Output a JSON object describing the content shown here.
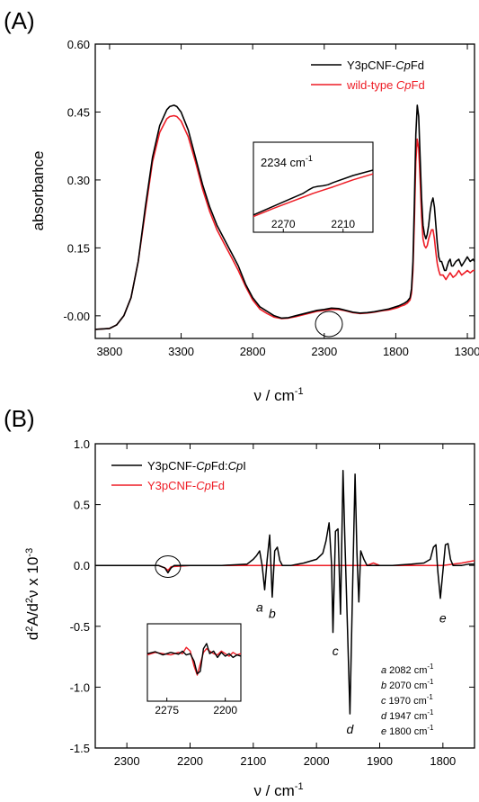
{
  "charts": [
    {
      "type": "line",
      "panel_label": "(A)",
      "xlabel_sym": "ν",
      "xlabel_unit": " / cm",
      "xlabel_exp": "-1",
      "ylabel": "absorbance",
      "xlim": [
        3900,
        1250
      ],
      "ylim": [
        -0.05,
        0.6
      ],
      "x_ticks": [
        3800,
        3300,
        2800,
        2300,
        1800,
        1300
      ],
      "y_ticks": [
        "-0.00",
        "0.15",
        "0.30",
        "0.45",
        "0.60"
      ],
      "y_tick_values": [
        0,
        0.15,
        0.3,
        0.45,
        0.6
      ],
      "legend": {
        "placement": "top-right"
      },
      "series": [
        {
          "name_parts": [
            "Y3pCNF-",
            "Cp",
            "Fd"
          ],
          "color": "#000000",
          "x": [
            3900,
            3800,
            3750,
            3700,
            3650,
            3600,
            3550,
            3500,
            3450,
            3400,
            3380,
            3350,
            3330,
            3300,
            3250,
            3200,
            3150,
            3100,
            3050,
            3000,
            2950,
            2900,
            2850,
            2800,
            2750,
            2700,
            2650,
            2600,
            2550,
            2500,
            2450,
            2400,
            2350,
            2300,
            2250,
            2200,
            2150,
            2100,
            2050,
            2000,
            1950,
            1900,
            1850,
            1800,
            1780,
            1760,
            1740,
            1720,
            1700,
            1690,
            1680,
            1670,
            1660,
            1650,
            1640,
            1630,
            1620,
            1610,
            1600,
            1590,
            1580,
            1570,
            1560,
            1550,
            1540,
            1530,
            1520,
            1510,
            1500,
            1490,
            1480,
            1470,
            1460,
            1450,
            1440,
            1430,
            1420,
            1410,
            1400,
            1380,
            1360,
            1340,
            1320,
            1300,
            1280,
            1260,
            1250
          ],
          "y": [
            -0.03,
            -0.028,
            -0.02,
            0.0,
            0.04,
            0.12,
            0.24,
            0.35,
            0.42,
            0.455,
            0.462,
            0.465,
            0.462,
            0.45,
            0.41,
            0.35,
            0.29,
            0.24,
            0.2,
            0.17,
            0.14,
            0.11,
            0.07,
            0.04,
            0.02,
            0.01,
            0.0,
            -0.005,
            -0.004,
            0.0,
            0.004,
            0.008,
            0.012,
            0.014,
            0.017,
            0.016,
            0.012,
            0.008,
            0.006,
            0.007,
            0.009,
            0.012,
            0.015,
            0.02,
            0.022,
            0.025,
            0.028,
            0.032,
            0.04,
            0.06,
            0.12,
            0.25,
            0.4,
            0.465,
            0.44,
            0.35,
            0.26,
            0.2,
            0.18,
            0.17,
            0.18,
            0.2,
            0.23,
            0.25,
            0.26,
            0.24,
            0.2,
            0.16,
            0.13,
            0.12,
            0.12,
            0.11,
            0.1,
            0.1,
            0.11,
            0.12,
            0.125,
            0.11,
            0.11,
            0.12,
            0.125,
            0.11,
            0.12,
            0.13,
            0.12,
            0.125,
            0.12
          ]
        },
        {
          "name_parts": [
            "wild-type ",
            "Cp",
            "Fd"
          ],
          "color": "#ee1c25",
          "x": [
            3900,
            3800,
            3750,
            3700,
            3650,
            3600,
            3550,
            3500,
            3450,
            3400,
            3380,
            3350,
            3330,
            3300,
            3250,
            3200,
            3150,
            3100,
            3050,
            3000,
            2950,
            2900,
            2850,
            2800,
            2750,
            2700,
            2650,
            2600,
            2550,
            2500,
            2450,
            2400,
            2350,
            2300,
            2250,
            2200,
            2150,
            2100,
            2050,
            2000,
            1950,
            1900,
            1850,
            1800,
            1780,
            1760,
            1740,
            1720,
            1700,
            1690,
            1680,
            1670,
            1660,
            1650,
            1640,
            1630,
            1620,
            1610,
            1600,
            1590,
            1580,
            1570,
            1560,
            1550,
            1540,
            1530,
            1520,
            1510,
            1500,
            1490,
            1480,
            1470,
            1460,
            1450,
            1440,
            1430,
            1420,
            1410,
            1400,
            1380,
            1360,
            1340,
            1320,
            1300,
            1280,
            1260,
            1250
          ],
          "y": [
            -0.03,
            -0.028,
            -0.02,
            0.0,
            0.04,
            0.12,
            0.23,
            0.34,
            0.405,
            0.435,
            0.44,
            0.442,
            0.44,
            0.43,
            0.395,
            0.34,
            0.28,
            0.23,
            0.19,
            0.16,
            0.13,
            0.1,
            0.065,
            0.035,
            0.015,
            0.005,
            -0.003,
            -0.006,
            -0.005,
            -0.002,
            0.002,
            0.006,
            0.01,
            0.012,
            0.014,
            0.014,
            0.011,
            0.007,
            0.005,
            0.006,
            0.008,
            0.011,
            0.013,
            0.017,
            0.019,
            0.022,
            0.024,
            0.028,
            0.035,
            0.05,
            0.1,
            0.21,
            0.34,
            0.39,
            0.37,
            0.3,
            0.22,
            0.17,
            0.155,
            0.15,
            0.155,
            0.17,
            0.18,
            0.19,
            0.19,
            0.17,
            0.14,
            0.115,
            0.1,
            0.09,
            0.09,
            0.09,
            0.085,
            0.08,
            0.085,
            0.09,
            0.095,
            0.09,
            0.085,
            0.09,
            0.1,
            0.09,
            0.095,
            0.1,
            0.095,
            0.1,
            0.1
          ]
        }
      ],
      "inset": {
        "label_main": "2234 cm",
        "label_exp": "-1",
        "xlim": [
          2300,
          2180
        ],
        "ylim": [
          0,
          1
        ],
        "x_ticks": [
          2270,
          2210
        ],
        "series": [
          {
            "color": "#000000",
            "x": [
              2300,
              2280,
              2260,
              2250,
              2245,
              2240,
              2235,
              2230,
              2225,
              2220,
              2200,
              2180
            ],
            "y": [
              0.12,
              0.28,
              0.44,
              0.52,
              0.58,
              0.63,
              0.65,
              0.66,
              0.68,
              0.72,
              0.85,
              0.95
            ]
          },
          {
            "color": "#ee1c25",
            "x": [
              2300,
              2280,
              2260,
              2250,
              2240,
              2230,
              2220,
              2200,
              2180
            ],
            "y": [
              0.09,
              0.24,
              0.38,
              0.45,
              0.52,
              0.58,
              0.64,
              0.77,
              0.88
            ]
          }
        ]
      }
    },
    {
      "type": "line",
      "panel_label": "(B)",
      "xlabel_sym": "ν",
      "xlabel_unit": " / cm",
      "xlabel_exp": "-1",
      "ylabel_parts": [
        "d",
        "2",
        "A/d",
        "2",
        "ν x 10",
        "-3"
      ],
      "xlim": [
        2350,
        1750
      ],
      "ylim": [
        -1.5,
        1.0
      ],
      "x_ticks": [
        2300,
        2200,
        2100,
        2000,
        1900,
        1800
      ],
      "y_ticks": [
        "1.0",
        "0.5",
        "0.0",
        "-0.5",
        "-1.0",
        "-1.5"
      ],
      "y_tick_values": [
        1.0,
        0.5,
        0.0,
        -0.5,
        -1.0,
        -1.5
      ],
      "legend": {
        "placement": "top-left"
      },
      "series": [
        {
          "name_parts": [
            "Y3pCNF-",
            "Cp",
            "Fd:",
            "Cp",
            "I"
          ],
          "color": "#000000",
          "x": [
            2350,
            2300,
            2250,
            2240,
            2235,
            2230,
            2225,
            2200,
            2150,
            2110,
            2100,
            2095,
            2090,
            2086,
            2082,
            2078,
            2074,
            2070,
            2066,
            2062,
            2058,
            2054,
            2050,
            2040,
            2020,
            2000,
            1990,
            1985,
            1980,
            1976,
            1974,
            1970,
            1966,
            1962,
            1958,
            1955,
            1951,
            1947,
            1943,
            1939,
            1936,
            1933,
            1930,
            1925,
            1920,
            1910,
            1900,
            1880,
            1850,
            1830,
            1820,
            1815,
            1811,
            1808,
            1804,
            1800,
            1796,
            1792,
            1788,
            1784,
            1780,
            1770,
            1760,
            1750
          ],
          "y": [
            0,
            0,
            0,
            -0.02,
            -0.06,
            -0.02,
            0,
            0,
            0,
            0.01,
            0.05,
            0.08,
            0.12,
            0.0,
            -0.2,
            0.05,
            0.25,
            -0.26,
            0.12,
            0.15,
            0.04,
            0.0,
            0.0,
            0.0,
            0.02,
            0.05,
            0.1,
            0.2,
            0.35,
            0.0,
            -0.55,
            0.28,
            0.3,
            -0.4,
            0.78,
            0.2,
            -0.5,
            -1.22,
            -0.2,
            0.75,
            0.1,
            -0.3,
            0.12,
            0.05,
            0.0,
            0.0,
            0.0,
            0.0,
            0.01,
            0.02,
            0.05,
            0.15,
            0.17,
            -0.05,
            -0.27,
            -0.05,
            0.17,
            0.18,
            0.05,
            0.0,
            0.0,
            0.0,
            0.01,
            0.01
          ]
        },
        {
          "name_parts": [
            "Y3pCNF-",
            "Cp",
            "Fd"
          ],
          "color": "#ee1c25",
          "x": [
            2350,
            2300,
            2250,
            2240,
            2235,
            2230,
            2200,
            2150,
            2100,
            2050,
            2000,
            1950,
            1920,
            1910,
            1900,
            1850,
            1800,
            1770,
            1760,
            1750
          ],
          "y": [
            0,
            0,
            0,
            -0.02,
            -0.04,
            -0.01,
            0,
            0,
            0,
            0,
            0,
            0,
            0.0,
            0.02,
            0.0,
            0,
            0,
            0.02,
            0.03,
            0.04
          ]
        }
      ],
      "peak_letters": [
        {
          "letter": "a",
          "x": 2090,
          "y": -0.38
        },
        {
          "letter": "b",
          "x": 2070,
          "y": -0.43
        },
        {
          "letter": "c",
          "x": 1970,
          "y": -0.74
        },
        {
          "letter": "d",
          "x": 1947,
          "y": -1.38
        },
        {
          "letter": "e",
          "x": 1800,
          "y": -0.47
        }
      ],
      "peak_list": [
        {
          "letter": "a",
          "value": " 2082 cm",
          "exp": "-1"
        },
        {
          "letter": "b",
          "value": " 2070 cm",
          "exp": "-1"
        },
        {
          "letter": "c",
          "value": " 1970 cm",
          "exp": "-1"
        },
        {
          "letter": "d",
          "value": " 1947 cm",
          "exp": "-1"
        },
        {
          "letter": "e",
          "value": " 1800 cm",
          "exp": "-1"
        }
      ],
      "inset": {
        "xlim": [
          2300,
          2180
        ],
        "ylim": [
          -1,
          1
        ],
        "x_ticks": [
          2275,
          2200
        ],
        "series": [
          {
            "color": "#000000",
            "x": [
              2300,
              2290,
              2280,
              2270,
              2260,
              2255,
              2250,
              2245,
              2240,
              2236,
              2232,
              2228,
              2224,
              2220,
              2215,
              2210,
              2205,
              2200,
              2195,
              2190,
              2185,
              2180
            ],
            "y": [
              0.1,
              0.18,
              0.05,
              0.15,
              0.08,
              0.2,
              0.05,
              0.1,
              -0.2,
              -0.7,
              -0.6,
              0.3,
              0.5,
              0.1,
              0.2,
              -0.05,
              0.15,
              0.0,
              0.1,
              -0.05,
              0.05,
              0.0
            ]
          },
          {
            "color": "#ee1c25",
            "x": [
              2300,
              2290,
              2280,
              2270,
              2260,
              2255,
              2250,
              2245,
              2240,
              2236,
              2232,
              2228,
              2224,
              2220,
              2215,
              2210,
              2205,
              2200,
              2195,
              2190,
              2185,
              2180
            ],
            "y": [
              0.05,
              0.15,
              0.1,
              0.05,
              0.15,
              0.1,
              0.35,
              0.2,
              -0.4,
              -0.75,
              -0.3,
              0.15,
              0.3,
              0.2,
              0.1,
              0.05,
              0.2,
              0.1,
              0.0,
              0.15,
              0.05,
              0.1
            ]
          }
        ]
      }
    }
  ]
}
